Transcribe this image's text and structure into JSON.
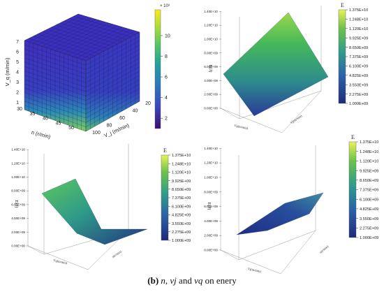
{
  "caption": {
    "label": "(b)",
    "text_parts": [
      {
        "t": " ",
        "style": "normal"
      },
      {
        "t": "n",
        "style": "italic"
      },
      {
        "t": ", ",
        "style": "normal"
      },
      {
        "t": "vj",
        "style": "italic"
      },
      {
        "t": " and ",
        "style": "normal"
      },
      {
        "t": "vq",
        "style": "italic"
      },
      {
        "t": " on enery",
        "style": "normal"
      }
    ]
  },
  "colors": {
    "cmap": [
      "#3b0f70",
      "#3b4cc0",
      "#2c7fb8",
      "#21a39a",
      "#52c569",
      "#a8dc3a",
      "#fde725"
    ],
    "surface_low": "#2a3a8c",
    "surface_high": "#4ec25a"
  },
  "chart_data": [
    {
      "type": "heatmap",
      "id": "cube",
      "title": "",
      "axes": {
        "x": {
          "label": "n (r/min)",
          "ticks": [
            "30",
            "35",
            "40",
            "45",
            "50"
          ]
        },
        "y": {
          "label": "V_j (m/min)",
          "ticks": [
            "20",
            "40",
            "60",
            "80",
            "100"
          ]
        },
        "z": {
          "label": "V_q (m/min)",
          "ticks": [
            "1",
            "2",
            "3",
            "4",
            "5",
            "6",
            "7"
          ]
        }
      },
      "colorbar": {
        "exponent": "× 10⁹",
        "ticks": [
          "2",
          "4",
          "6",
          "8",
          "10"
        ],
        "range": [
          1.0,
          12.5
        ]
      }
    },
    {
      "type": "area",
      "id": "surf1",
      "zlabel": "E(J)",
      "z_ticks": [
        "0.00E+00",
        "2.00E+09",
        "4.00E+09",
        "6.00E+09",
        "8.00E+09",
        "1.00E+10",
        "1.20E+10",
        "1.40E+10"
      ],
      "colorbar": {
        "title": "E",
        "ticks": [
          "1.375E+10",
          "1.248E+10",
          "1.120E+10",
          "9.925E+09",
          "8.650E+09",
          "7.375E+09",
          "6.100E+09",
          "4.825E+09",
          "3.550E+09",
          "2.275E+09",
          "1.000E+09"
        ]
      },
      "xlabel": "Vq(m/min)",
      "ylabel": "Vj(m/min)"
    },
    {
      "type": "area",
      "id": "surf2",
      "zlabel": "E(J)",
      "z_ticks": [
        "0.00E+00",
        "2.00E+09",
        "4.00E+09",
        "6.00E+09",
        "8.00E+09",
        "1.00E+10",
        "1.20E+10",
        "1.40E+10"
      ],
      "colorbar": {
        "title": "E",
        "ticks": [
          "1.375E+10",
          "1.248E+10",
          "1.120E+10",
          "9.925E+09",
          "8.650E+09",
          "7.375E+09",
          "6.100E+09",
          "4.825E+09",
          "3.550E+09",
          "2.275E+09",
          "1.000E+09"
        ]
      },
      "xlabel": "Vq(m/min)",
      "ylabel": "n(r/min)"
    },
    {
      "type": "area",
      "id": "surf3",
      "zlabel": "E(J)",
      "z_ticks": [
        "0.00E+00",
        "2.00E+09",
        "4.00E+09",
        "6.00E+09",
        "8.00E+09",
        "1.00E+10",
        "1.20E+10",
        "1.40E+10"
      ],
      "colorbar": {
        "title": "E",
        "ticks": [
          "1.375E+10",
          "1.248E+10",
          "1.120E+10",
          "9.925E+09",
          "8.650E+09",
          "7.375E+09",
          "6.100E+09",
          "4.825E+09",
          "3.550E+09",
          "2.275E+09",
          "1.000E+09"
        ]
      },
      "xlabel": "Vj(m/min)",
      "ylabel": "n(r/min)"
    }
  ]
}
